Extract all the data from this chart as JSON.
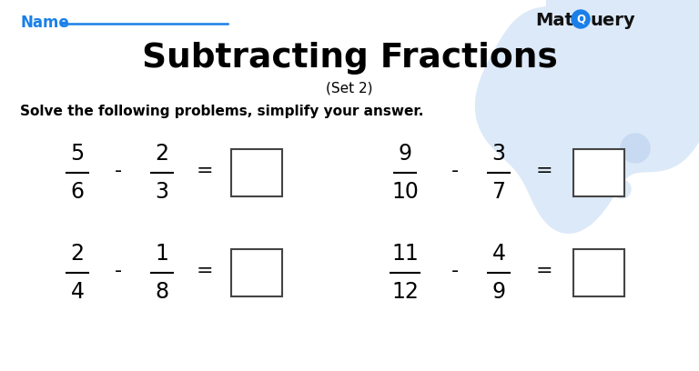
{
  "title": "Subtracting Fractions",
  "subtitle": "(Set 2)",
  "instruction": "Solve the following problems, simplify your answer.",
  "name_label": "Name",
  "background_color": "#ffffff",
  "blob_color": "#dce9f8",
  "blob_circle1_color": "#c8daf2",
  "blob_circle2_color": "#dce9f8",
  "title_color": "#000000",
  "name_color": "#1a7fe8",
  "line_color": "#1a7fe8",
  "logo_color": "#111111",
  "logo_circle_color": "#1a7fe8",
  "problems": [
    {
      "num1": "5",
      "den1": "6",
      "num2": "2",
      "den2": "3"
    },
    {
      "num1": "9",
      "den1": "10",
      "num2": "3",
      "den2": "7"
    },
    {
      "num1": "2",
      "den1": "4",
      "num2": "1",
      "den2": "8"
    },
    {
      "num1": "11",
      "den1": "12",
      "num2": "4",
      "den2": "9"
    }
  ],
  "layouts": [
    [
      85,
      130,
      178,
      225,
      282,
      218
    ],
    [
      445,
      500,
      548,
      598,
      658,
      218
    ],
    [
      85,
      130,
      178,
      225,
      282,
      108
    ],
    [
      445,
      500,
      548,
      598,
      658,
      108
    ]
  ]
}
